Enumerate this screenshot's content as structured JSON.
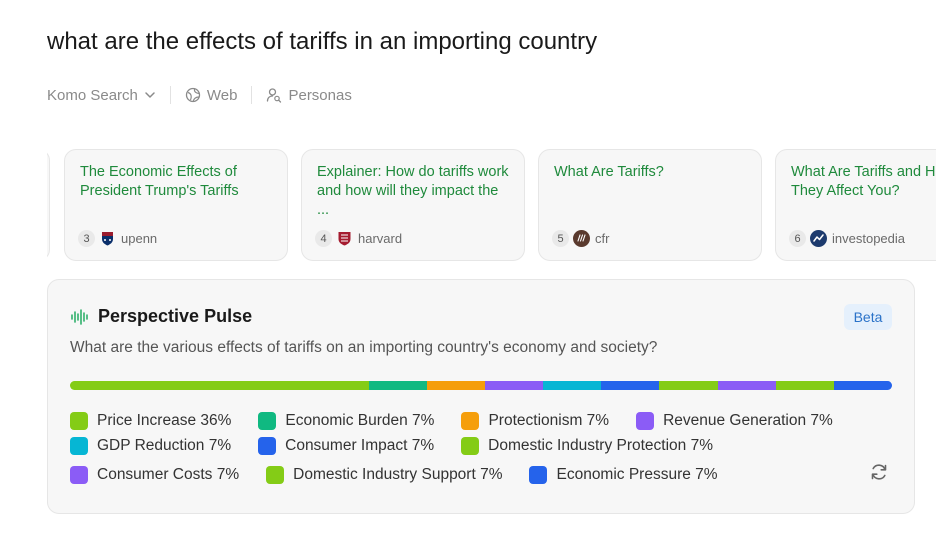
{
  "query": {
    "title": "what are the effects of tariffs in an importing country"
  },
  "filters": {
    "engine": "Komo Search",
    "web": "Web",
    "personas": "Personas"
  },
  "sources": [
    {
      "number": "3",
      "title": "The Economic Effects of President Trump's Tariffs",
      "site": "upenn"
    },
    {
      "number": "4",
      "title": "Explainer: How do tariffs work and how will they impact the ...",
      "site": "harvard"
    },
    {
      "number": "5",
      "title": "What Are Tariffs?",
      "site": "cfr"
    },
    {
      "number": "6",
      "title": "What Are Tariffs and How Do They Affect You?",
      "site": "investopedia"
    }
  ],
  "pulse": {
    "title": "Perspective Pulse",
    "badge": "Beta",
    "question": "What are the various effects of tariffs on an importing country's economy and society?",
    "segments": [
      {
        "label": "Price Increase 36%",
        "percent": 36,
        "color": "#84cc16"
      },
      {
        "label": "Economic Burden 7%",
        "percent": 7,
        "color": "#10b981"
      },
      {
        "label": "Protectionism 7%",
        "percent": 7,
        "color": "#f59e0b"
      },
      {
        "label": "Revenue Generation 7%",
        "percent": 7,
        "color": "#8b5cf6"
      },
      {
        "label": "GDP Reduction 7%",
        "percent": 7,
        "color": "#06b6d4"
      },
      {
        "label": "Consumer Impact 7%",
        "percent": 7,
        "color": "#2563eb"
      },
      {
        "label": "Domestic Industry Protection 7%",
        "percent": 7,
        "color": "#84cc16"
      },
      {
        "label": "Consumer Costs 7%",
        "percent": 7,
        "color": "#8b5cf6"
      },
      {
        "label": "Domestic Industry Support 7%",
        "percent": 7,
        "color": "#84cc16"
      },
      {
        "label": "Economic Pressure 7%",
        "percent": 7,
        "color": "#2563eb"
      }
    ]
  },
  "icons": {
    "engine_chevron": "chevron-down-icon",
    "web": "globe-icon",
    "personas": "person-search-icon",
    "pulse": "audio-wave-icon",
    "refresh": "refresh-icon"
  }
}
